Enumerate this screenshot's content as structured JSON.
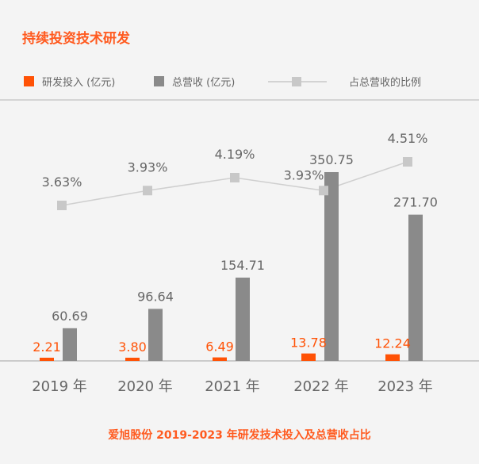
{
  "title": "持续投资技术研发",
  "legend": {
    "rd": "研发投入 (亿元)",
    "revenue": "总营收 (亿元)",
    "ratio": "占总营收的比例"
  },
  "caption": "爱旭股份 2019-2023 年研发技术投入及总营收占比",
  "colors": {
    "rd": "#ff5206",
    "revenue": "#8a8a8a",
    "ratio": "#c8c8c8",
    "accent": "#ff5a1f"
  },
  "chart_data": {
    "type": "bar",
    "categories": [
      "2019 年",
      "2020 年",
      "2021 年",
      "2022 年",
      "2023 年"
    ],
    "series": [
      {
        "name": "研发投入 (亿元)",
        "type": "bar",
        "values": [
          2.21,
          3.8,
          6.49,
          13.78,
          12.24
        ],
        "labels": [
          "2.21",
          "3.80",
          "6.49",
          "13.78",
          "12.24"
        ]
      },
      {
        "name": "总营收 (亿元)",
        "type": "bar",
        "values": [
          60.69,
          96.64,
          154.71,
          350.75,
          271.7
        ],
        "labels": [
          "60.69",
          "96.64",
          "154.71",
          "350.75",
          "271.70"
        ]
      },
      {
        "name": "占总营收的比例",
        "type": "line",
        "values": [
          3.63,
          3.93,
          4.19,
          3.93,
          4.51
        ],
        "labels": [
          "3.63%",
          "3.93%",
          "4.19%",
          "3.93%",
          "4.51%"
        ]
      }
    ],
    "grid": false,
    "legend_position": "top-left"
  }
}
